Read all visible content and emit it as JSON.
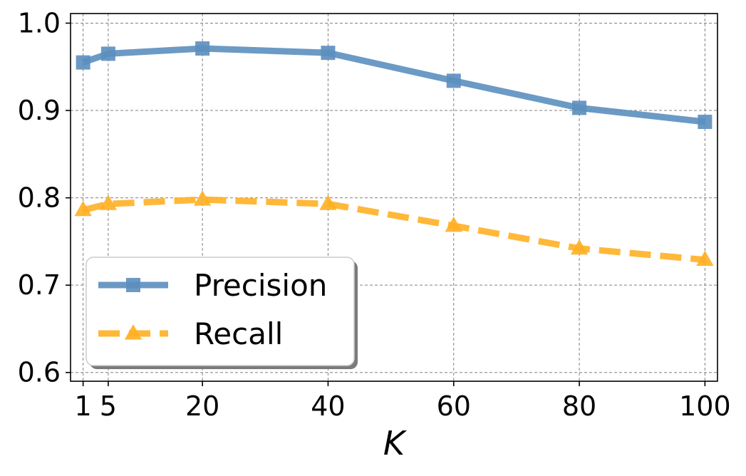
{
  "chart_data": {
    "type": "line",
    "title": "",
    "xlabel": "K",
    "ylabel": "",
    "x": [
      1,
      5,
      20,
      40,
      60,
      80,
      100
    ],
    "xticks": [
      1,
      5,
      20,
      40,
      60,
      80,
      100
    ],
    "xtick_labels": [
      "1",
      "5",
      "20",
      "40",
      "60",
      "80",
      "100"
    ],
    "xlim": [
      -1,
      102
    ],
    "yticks": [
      0.6,
      0.7,
      0.8,
      0.9,
      1.0
    ],
    "ytick_labels": [
      "0.6",
      "0.7",
      "0.8",
      "0.9",
      "1.0"
    ],
    "ylim": [
      0.59,
      1.011
    ],
    "grid": true,
    "legend_position": "lower-left",
    "series": [
      {
        "name": "Precision",
        "values": [
          0.955,
          0.965,
          0.971,
          0.966,
          0.934,
          0.903,
          0.887
        ],
        "color": "#5b8fbf",
        "line_style": "solid",
        "marker": "square"
      },
      {
        "name": "Recall",
        "values": [
          0.786,
          0.793,
          0.798,
          0.793,
          0.768,
          0.742,
          0.729
        ],
        "color": "#ffb023",
        "line_style": "dashed",
        "marker": "triangle"
      }
    ]
  }
}
